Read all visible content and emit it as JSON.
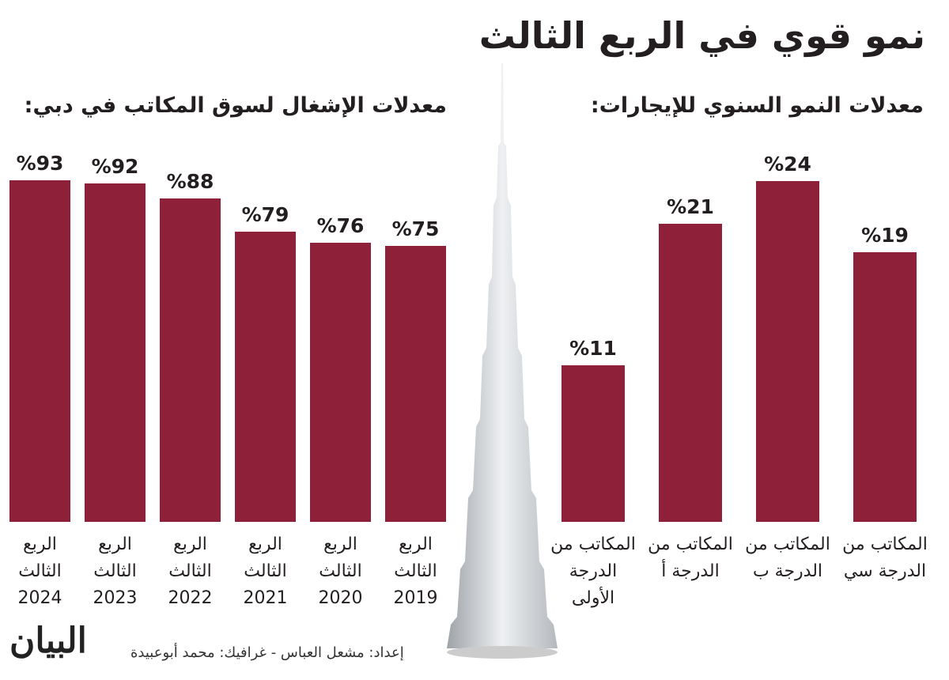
{
  "title": "نمو قوي في الربع الثالث",
  "credit": "إعداد: مشعل العباس - غرافيك: محمد أبوعبيدة",
  "logo": "البيان",
  "chart_data": [
    {
      "type": "bar",
      "title": "معدلات الإشغال لسوق المكاتب في دبي:",
      "categories": [
        "الربع الثالث 2024",
        "الربع الثالث 2023",
        "الربع الثالث 2022",
        "الربع الثالث 2021",
        "الربع الثالث 2020",
        "الربع الثالث 2019"
      ],
      "values": [
        93,
        92,
        88,
        79,
        76,
        75
      ],
      "value_labels": [
        "%93",
        "%92",
        "%88",
        "%79",
        "%76",
        "%75"
      ],
      "color": "#8e2139",
      "ylim": [
        0,
        100
      ]
    },
    {
      "type": "bar",
      "title": "معدلات النمو السنوي للإيجارات:",
      "categories": [
        "المكاتب من الدرجة الأولى",
        "المكاتب من الدرجة أ",
        "المكاتب من الدرجة ب",
        "المكاتب من الدرجة سي"
      ],
      "values": [
        11,
        21,
        24,
        19
      ],
      "value_labels": [
        "%11",
        "%21",
        "%24",
        "%19"
      ],
      "color": "#8e2139",
      "ylim": [
        0,
        25
      ]
    }
  ]
}
